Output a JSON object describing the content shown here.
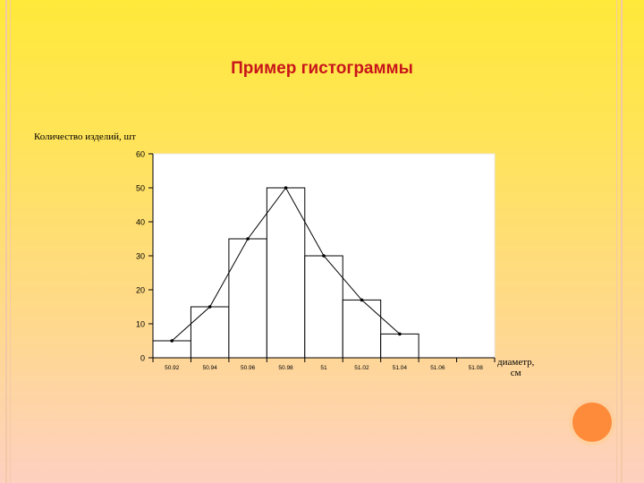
{
  "slide": {
    "title": "Пример гистограммы",
    "accent_color": "#c8151b",
    "decor_circle_color": "#fd8b3a"
  },
  "chart_data": {
    "type": "bar",
    "title": "Пример гистограммы",
    "ylabel": "Количество изделий, шт",
    "xlabel_line1": "диаметр,",
    "xlabel_line2": "см",
    "categories": [
      "50.92",
      "50.94",
      "50.96",
      "50.98",
      "51",
      "51.02",
      "51.04",
      "51.06",
      "51.08"
    ],
    "values": [
      5,
      15,
      35,
      50,
      30,
      17,
      7,
      0,
      0
    ],
    "ylim": [
      0,
      60
    ],
    "yticks": [
      "0",
      "10",
      "20",
      "30",
      "40",
      "50",
      "60"
    ],
    "polygon_overlay": true,
    "grid": false
  }
}
